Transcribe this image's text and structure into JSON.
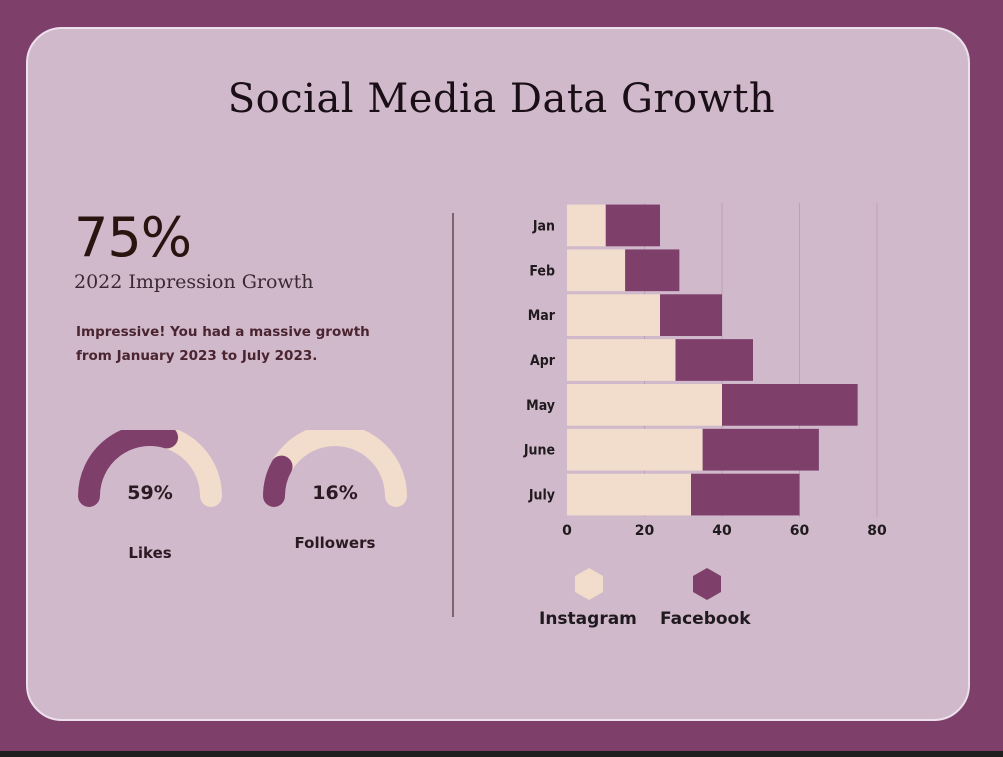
{
  "title": "Social Media Data Growth",
  "headline": {
    "value": "75%",
    "label": "2022 Impression Growth"
  },
  "description": "Impressive! You had a massive growth from January 2023 to July 2023.",
  "gauges": [
    {
      "label": "Likes",
      "value_text": "59%",
      "value": 59
    },
    {
      "label": "Followers",
      "value_text": "16%",
      "value": 16
    }
  ],
  "colors": {
    "instagram": "#f2dccb",
    "facebook": "#7e3f6b",
    "background": "#d1b9cc",
    "frame": "#7e3f6b"
  },
  "legend": [
    {
      "name": "Instagram",
      "icon": "hexagon-icon"
    },
    {
      "name": "Facebook",
      "icon": "hexagon-icon"
    }
  ],
  "chart_data": {
    "type": "bar",
    "orientation": "horizontal",
    "stacked": true,
    "categories": [
      "Jan",
      "Feb",
      "Mar",
      "Apr",
      "May",
      "June",
      "July"
    ],
    "series": [
      {
        "name": "Instagram",
        "values": [
          10,
          15,
          24,
          28,
          40,
          35,
          32
        ]
      },
      {
        "name": "Facebook",
        "values": [
          14,
          14,
          16,
          20,
          35,
          30,
          28
        ]
      }
    ],
    "xlim": [
      0,
      80
    ],
    "xticks": [
      0,
      20,
      40,
      60,
      80
    ],
    "grid": true,
    "legend_position": "bottom"
  }
}
